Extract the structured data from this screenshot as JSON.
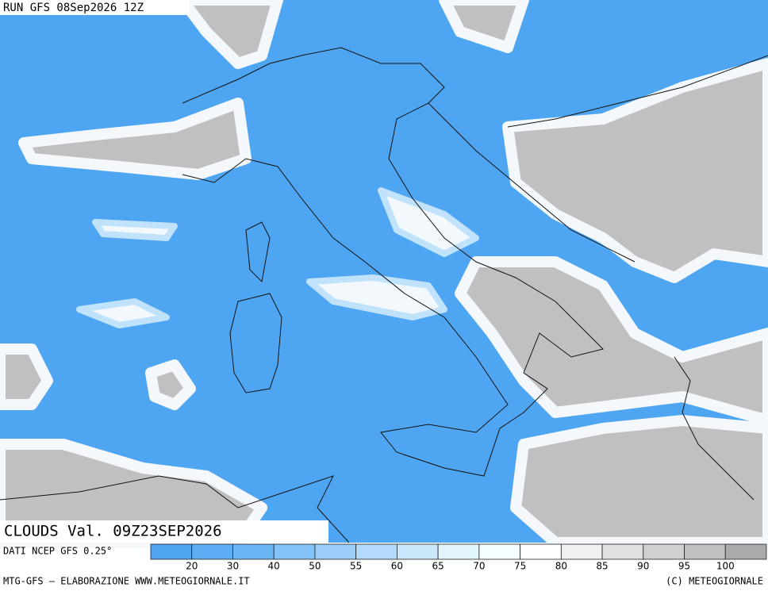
{
  "header": {
    "run": "RUN GFS 08Sep2026 12Z"
  },
  "title": "CLOUDS Val. 09Z23SEP2026",
  "source": "DATI NCEP GFS 0.25°",
  "legend": {
    "colors": [
      "#4ea6f2",
      "#5cadf4",
      "#6cb6f5",
      "#82c2f7",
      "#9acef8",
      "#b2dafa",
      "#cae6fb",
      "#e2f4fc",
      "#f4fefe",
      "#ffffff",
      "#f0f0f0",
      "#e0e0e0",
      "#d0d0d0",
      "#c0c0c0",
      "#aaaaaa"
    ],
    "ticks": [
      20,
      30,
      40,
      50,
      55,
      60,
      65,
      70,
      75,
      80,
      85,
      90,
      95,
      100
    ]
  },
  "footer": {
    "left": "MTG-GFS — ELABORAZIONE WWW.METEOGIORNALE.IT",
    "right": "(C) METEOGIORNALE"
  }
}
